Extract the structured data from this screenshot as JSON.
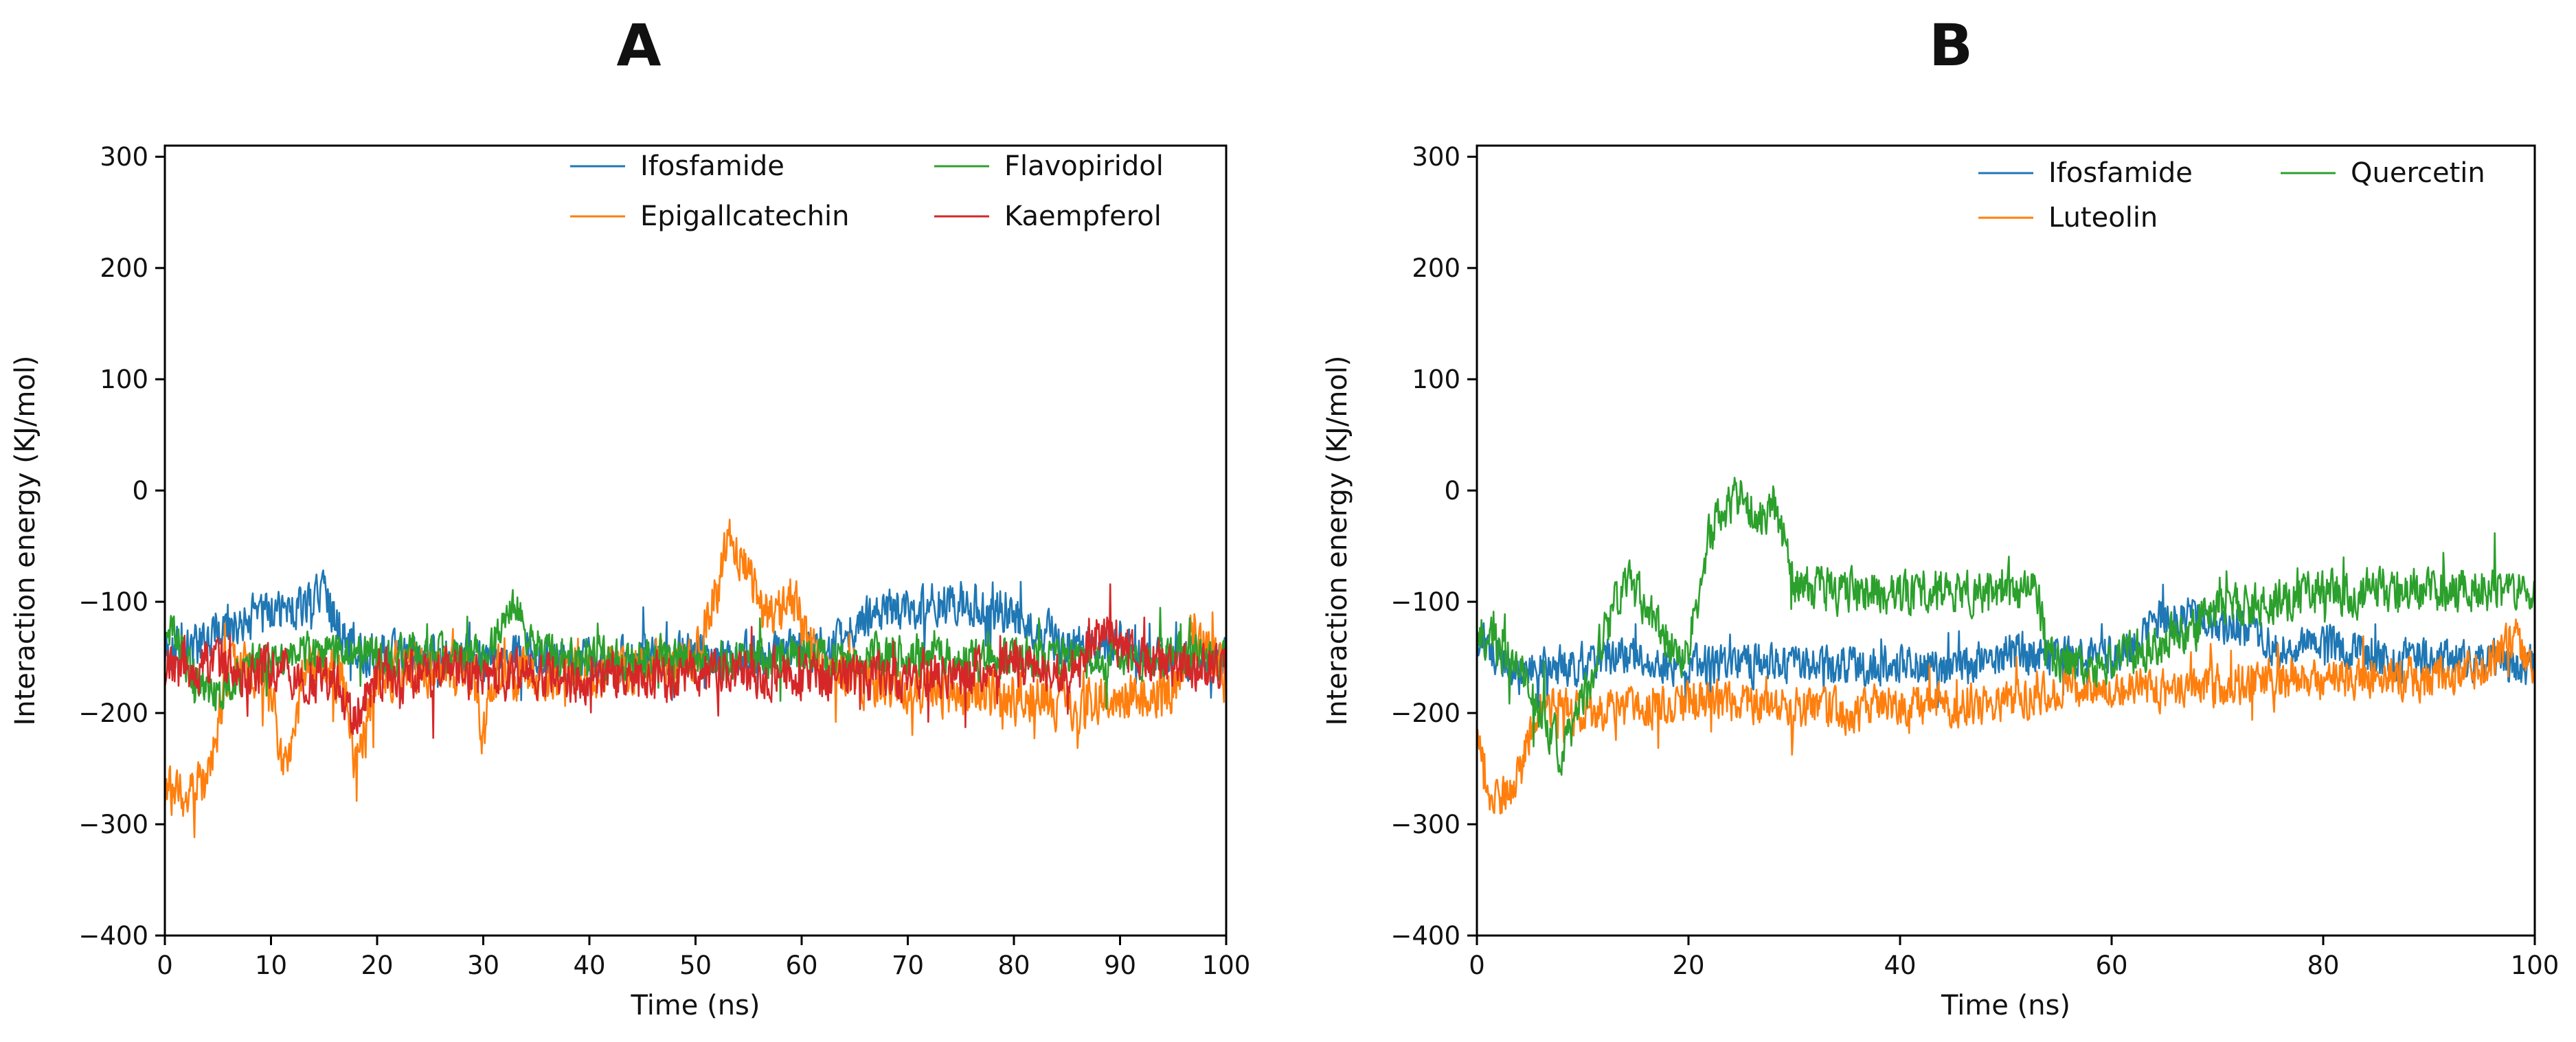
{
  "chart_data": [
    {
      "type": "line",
      "panel": "A",
      "title": "",
      "xlabel": "Time (ns)",
      "ylabel": "Interaction energy (KJ/mol)",
      "xlim": [
        0,
        100
      ],
      "ylim": [
        -400,
        310
      ],
      "xticks": [
        0,
        10,
        20,
        30,
        40,
        50,
        60,
        70,
        80,
        90,
        100
      ],
      "yticks": [
        -400,
        -300,
        -200,
        -100,
        0,
        100,
        200,
        300
      ],
      "grid": false,
      "legend_position": "top-right",
      "legend_columns": 2,
      "series": [
        {
          "name": "Ifosfamide",
          "color": "#1f77b4",
          "mean_profile": [
            [
              0,
              -145
            ],
            [
              3,
              -140
            ],
            [
              5,
              -130
            ],
            [
              8,
              -115
            ],
            [
              10,
              -110
            ],
            [
              12,
              -105
            ],
            [
              14,
              -95
            ],
            [
              15,
              -90
            ],
            [
              17,
              -135
            ],
            [
              20,
              -150
            ],
            [
              25,
              -150
            ],
            [
              30,
              -150
            ],
            [
              35,
              -150
            ],
            [
              40,
              -155
            ],
            [
              45,
              -150
            ],
            [
              50,
              -150
            ],
            [
              55,
              -150
            ],
            [
              60,
              -145
            ],
            [
              63,
              -140
            ],
            [
              66,
              -115
            ],
            [
              70,
              -105
            ],
            [
              75,
              -100
            ],
            [
              80,
              -110
            ],
            [
              85,
              -140
            ],
            [
              90,
              -145
            ],
            [
              95,
              -150
            ],
            [
              100,
              -150
            ]
          ],
          "noise": 22
        },
        {
          "name": "Epigallcatechin",
          "color": "#ff7f0e",
          "mean_profile": [
            [
              0,
              -270
            ],
            [
              2,
              -275
            ],
            [
              4,
              -265
            ],
            [
              5,
              -210
            ],
            [
              6,
              -160
            ],
            [
              8,
              -155
            ],
            [
              10,
              -180
            ],
            [
              11,
              -250
            ],
            [
              12,
              -240
            ],
            [
              13,
              -165
            ],
            [
              15,
              -155
            ],
            [
              17,
              -175
            ],
            [
              18,
              -255
            ],
            [
              19,
              -210
            ],
            [
              20,
              -165
            ],
            [
              25,
              -160
            ],
            [
              29,
              -165
            ],
            [
              30,
              -225
            ],
            [
              31,
              -165
            ],
            [
              40,
              -165
            ],
            [
              45,
              -160
            ],
            [
              50,
              -150
            ],
            [
              52,
              -90
            ],
            [
              53,
              -45
            ],
            [
              54,
              -55
            ],
            [
              55,
              -70
            ],
            [
              56,
              -110
            ],
            [
              58,
              -110
            ],
            [
              59,
              -85
            ],
            [
              60,
              -120
            ],
            [
              61,
              -150
            ],
            [
              65,
              -170
            ],
            [
              70,
              -175
            ],
            [
              75,
              -180
            ],
            [
              80,
              -185
            ],
            [
              85,
              -190
            ],
            [
              90,
              -185
            ],
            [
              95,
              -180
            ],
            [
              97,
              -130
            ],
            [
              100,
              -170
            ]
          ],
          "noise": 25
        },
        {
          "name": "Flavopiridol",
          "color": "#2ca02c",
          "mean_profile": [
            [
              0,
              -120
            ],
            [
              1,
              -130
            ],
            [
              3,
              -175
            ],
            [
              5,
              -185
            ],
            [
              8,
              -155
            ],
            [
              10,
              -150
            ],
            [
              15,
              -145
            ],
            [
              20,
              -150
            ],
            [
              25,
              -145
            ],
            [
              30,
              -150
            ],
            [
              33,
              -100
            ],
            [
              34,
              -130
            ],
            [
              36,
              -150
            ],
            [
              40,
              -150
            ],
            [
              45,
              -150
            ],
            [
              50,
              -150
            ],
            [
              55,
              -150
            ],
            [
              60,
              -150
            ],
            [
              65,
              -150
            ],
            [
              70,
              -145
            ],
            [
              75,
              -150
            ],
            [
              80,
              -150
            ],
            [
              85,
              -150
            ],
            [
              90,
              -150
            ],
            [
              95,
              -150
            ],
            [
              100,
              -150
            ]
          ],
          "noise": 20
        },
        {
          "name": "Kaempferol",
          "color": "#d62728",
          "mean_profile": [
            [
              0,
              -160
            ],
            [
              5,
              -160
            ],
            [
              10,
              -165
            ],
            [
              15,
              -165
            ],
            [
              18,
              -200
            ],
            [
              20,
              -165
            ],
            [
              25,
              -165
            ],
            [
              30,
              -165
            ],
            [
              35,
              -165
            ],
            [
              40,
              -170
            ],
            [
              45,
              -170
            ],
            [
              50,
              -165
            ],
            [
              55,
              -165
            ],
            [
              60,
              -165
            ],
            [
              65,
              -170
            ],
            [
              70,
              -165
            ],
            [
              75,
              -165
            ],
            [
              80,
              -160
            ],
            [
              85,
              -160
            ],
            [
              89,
              -120
            ],
            [
              90,
              -140
            ],
            [
              95,
              -160
            ],
            [
              100,
              -160
            ]
          ],
          "noise": 24
        }
      ]
    },
    {
      "type": "line",
      "panel": "B",
      "title": "",
      "xlabel": "Time (ns)",
      "ylabel": "Interaction energy (KJ/mol)",
      "xlim": [
        0,
        100
      ],
      "ylim": [
        -400,
        310
      ],
      "xticks": [
        0,
        20,
        40,
        60,
        80,
        100
      ],
      "yticks": [
        -400,
        -300,
        -200,
        -100,
        0,
        100,
        200,
        300
      ],
      "grid": false,
      "legend_position": "top-right",
      "legend_columns": 2,
      "series": [
        {
          "name": "Ifosfamide",
          "color": "#1f77b4",
          "mean_profile": [
            [
              0,
              -130
            ],
            [
              2,
              -150
            ],
            [
              4,
              -170
            ],
            [
              6,
              -155
            ],
            [
              8,
              -160
            ],
            [
              10,
              -155
            ],
            [
              15,
              -150
            ],
            [
              20,
              -160
            ],
            [
              25,
              -155
            ],
            [
              30,
              -160
            ],
            [
              35,
              -160
            ],
            [
              40,
              -155
            ],
            [
              45,
              -160
            ],
            [
              50,
              -145
            ],
            [
              55,
              -150
            ],
            [
              60,
              -150
            ],
            [
              62,
              -140
            ],
            [
              65,
              -110
            ],
            [
              68,
              -115
            ],
            [
              70,
              -130
            ],
            [
              72,
              -120
            ],
            [
              75,
              -140
            ],
            [
              80,
              -140
            ],
            [
              85,
              -150
            ],
            [
              90,
              -150
            ],
            [
              95,
              -155
            ],
            [
              100,
              -160
            ]
          ],
          "noise": 20
        },
        {
          "name": "Luteolin",
          "color": "#ff7f0e",
          "mean_profile": [
            [
              0,
              -200
            ],
            [
              1,
              -270
            ],
            [
              3,
              -275
            ],
            [
              5,
              -220
            ],
            [
              6,
              -190
            ],
            [
              10,
              -200
            ],
            [
              20,
              -190
            ],
            [
              25,
              -190
            ],
            [
              30,
              -195
            ],
            [
              35,
              -200
            ],
            [
              40,
              -190
            ],
            [
              45,
              -195
            ],
            [
              50,
              -190
            ],
            [
              55,
              -180
            ],
            [
              60,
              -175
            ],
            [
              65,
              -180
            ],
            [
              70,
              -175
            ],
            [
              75,
              -170
            ],
            [
              80,
              -170
            ],
            [
              85,
              -165
            ],
            [
              90,
              -170
            ],
            [
              95,
              -160
            ],
            [
              98,
              -130
            ],
            [
              100,
              -165
            ]
          ],
          "noise": 20
        },
        {
          "name": "Quercetin",
          "color": "#2ca02c",
          "mean_profile": [
            [
              0,
              -120
            ],
            [
              2,
              -140
            ],
            [
              4,
              -160
            ],
            [
              6,
              -200
            ],
            [
              8,
              -235
            ],
            [
              10,
              -190
            ],
            [
              12,
              -130
            ],
            [
              14,
              -80
            ],
            [
              15,
              -90
            ],
            [
              17,
              -120
            ],
            [
              19,
              -150
            ],
            [
              20,
              -140
            ],
            [
              21,
              -90
            ],
            [
              22,
              -40
            ],
            [
              23,
              -20
            ],
            [
              24,
              -10
            ],
            [
              25,
              -5
            ],
            [
              26,
              -15
            ],
            [
              27,
              -25
            ],
            [
              28,
              -10
            ],
            [
              29,
              -40
            ],
            [
              30,
              -85
            ],
            [
              35,
              -90
            ],
            [
              40,
              -90
            ],
            [
              45,
              -90
            ],
            [
              50,
              -92
            ],
            [
              53,
              -90
            ],
            [
              54,
              -150
            ],
            [
              57,
              -155
            ],
            [
              60,
              -150
            ],
            [
              63,
              -145
            ],
            [
              66,
              -130
            ],
            [
              70,
              -110
            ],
            [
              75,
              -100
            ],
            [
              80,
              -90
            ],
            [
              85,
              -90
            ],
            [
              90,
              -90
            ],
            [
              95,
              -90
            ],
            [
              100,
              -85
            ]
          ],
          "noise": 22
        }
      ]
    }
  ]
}
